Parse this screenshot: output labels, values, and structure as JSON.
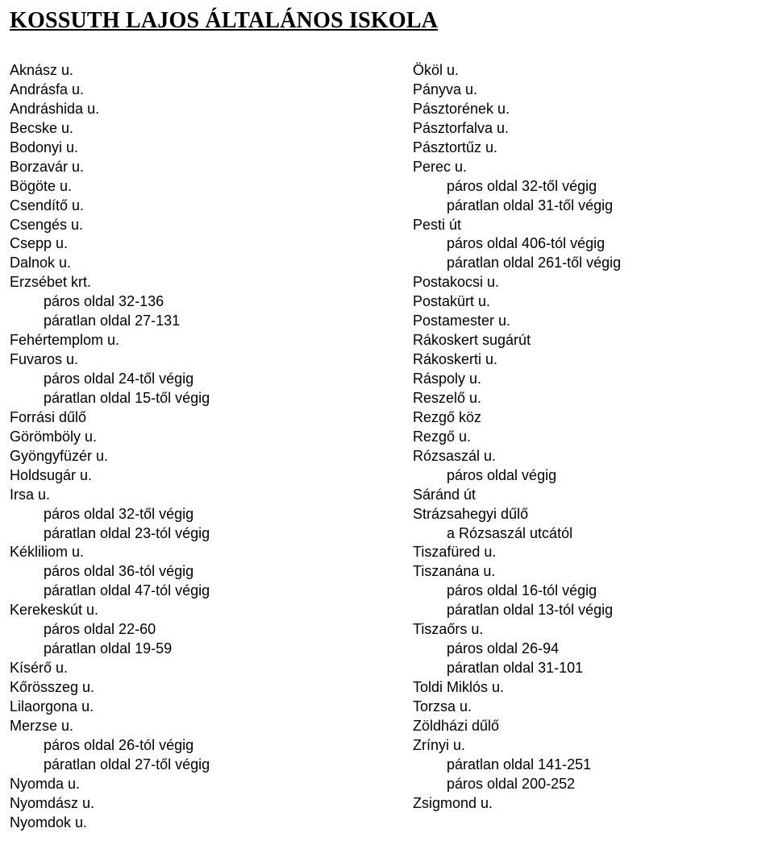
{
  "title": "KOSSUTH LAJOS ÁLTALÁNOS ISKOLA",
  "font": {
    "title_family": "Times New Roman",
    "title_size_pt": 21,
    "body_family": "Arial",
    "body_size_pt": 13.5
  },
  "colors": {
    "text": "#000000",
    "background": "#ffffff"
  },
  "columns": {
    "left": [
      {
        "text": "Aknász u.",
        "indent": 0
      },
      {
        "text": "Andrásfa u.",
        "indent": 0
      },
      {
        "text": "Andráshida u.",
        "indent": 0
      },
      {
        "text": "Becske u.",
        "indent": 0
      },
      {
        "text": "Bodonyi u.",
        "indent": 0
      },
      {
        "text": "Borzavár u.",
        "indent": 0
      },
      {
        "text": "Bögöte u.",
        "indent": 0
      },
      {
        "text": "Csendítő u.",
        "indent": 0
      },
      {
        "text": "Csengés u.",
        "indent": 0
      },
      {
        "text": "Csepp u.",
        "indent": 0
      },
      {
        "text": "Dalnok u.",
        "indent": 0
      },
      {
        "text": "Erzsébet krt.",
        "indent": 0
      },
      {
        "text": "páros oldal 32-136",
        "indent": 1
      },
      {
        "text": "páratlan oldal 27-131",
        "indent": 1
      },
      {
        "text": "Fehértemplom u.",
        "indent": 0
      },
      {
        "text": "Fuvaros u.",
        "indent": 0
      },
      {
        "text": "páros oldal 24-től végig",
        "indent": 1
      },
      {
        "text": "páratlan oldal 15-től végig",
        "indent": 1
      },
      {
        "text": "Forrási dűlő",
        "indent": 0
      },
      {
        "text": "Görömböly u.",
        "indent": 0
      },
      {
        "text": "Gyöngyfüzér u.",
        "indent": 0
      },
      {
        "text": "Holdsugár u.",
        "indent": 0
      },
      {
        "text": "Irsa u.",
        "indent": 0
      },
      {
        "text": "páros oldal 32-től végig",
        "indent": 1
      },
      {
        "text": "páratlan oldal 23-tól végig",
        "indent": 1
      },
      {
        "text": "Kékliliom u.",
        "indent": 0
      },
      {
        "text": "páros oldal 36-tól végig",
        "indent": 1
      },
      {
        "text": "páratlan oldal 47-tól végig",
        "indent": 1
      },
      {
        "text": "Kerekeskút u.",
        "indent": 0
      },
      {
        "text": "páros oldal 22-60",
        "indent": 1
      },
      {
        "text": "páratlan oldal 19-59",
        "indent": 1
      },
      {
        "text": "Kísérő u.",
        "indent": 0
      },
      {
        "text": "Kőrösszeg u.",
        "indent": 0
      },
      {
        "text": "Lilaorgona u.",
        "indent": 0
      },
      {
        "text": "Merzse u.",
        "indent": 0
      },
      {
        "text": "páros oldal 26-tól végig",
        "indent": 1
      },
      {
        "text": "páratlan oldal 27-től végig",
        "indent": 1
      },
      {
        "text": "Nyomda u.",
        "indent": 0
      },
      {
        "text": "Nyomdász u.",
        "indent": 0
      },
      {
        "text": "Nyomdok u.",
        "indent": 0
      }
    ],
    "right": [
      {
        "text": "Ököl u.",
        "indent": 0
      },
      {
        "text": "Pányva u.",
        "indent": 0
      },
      {
        "text": "Pásztorének u.",
        "indent": 0
      },
      {
        "text": "Pásztorfalva u.",
        "indent": 0
      },
      {
        "text": "Pásztortűz u.",
        "indent": 0
      },
      {
        "text": "Perec u.",
        "indent": 0
      },
      {
        "text": "páros oldal 32-től végig",
        "indent": 1
      },
      {
        "text": "páratlan oldal 31-től végig",
        "indent": 1
      },
      {
        "text": "Pesti út",
        "indent": 0
      },
      {
        "text": "páros oldal 406-tól végig",
        "indent": 1
      },
      {
        "text": "páratlan oldal 261-től végig",
        "indent": 1
      },
      {
        "text": "Postakocsi u.",
        "indent": 0
      },
      {
        "text": "Postakürt u.",
        "indent": 0
      },
      {
        "text": "Postamester u.",
        "indent": 0
      },
      {
        "text": "Rákoskert sugárút",
        "indent": 0
      },
      {
        "text": "Rákoskerti u.",
        "indent": 0
      },
      {
        "text": "Ráspoly u.",
        "indent": 0
      },
      {
        "text": "Reszelő u.",
        "indent": 0
      },
      {
        "text": "Rezgő köz",
        "indent": 0
      },
      {
        "text": "Rezgő u.",
        "indent": 0
      },
      {
        "text": "Rózsaszál u.",
        "indent": 0
      },
      {
        "text": "páros oldal végig",
        "indent": 1
      },
      {
        "text": "Sáránd út",
        "indent": 0
      },
      {
        "text": "Strázsahegyi dűlő",
        "indent": 0
      },
      {
        "text": "a Rózsaszál utcától",
        "indent": 1
      },
      {
        "text": "Tiszafüred u.",
        "indent": 0
      },
      {
        "text": "Tiszanána u.",
        "indent": 0
      },
      {
        "text": "páros oldal 16-tól végig",
        "indent": 1
      },
      {
        "text": "páratlan oldal 13-tól végig",
        "indent": 1
      },
      {
        "text": "Tiszaőrs u.",
        "indent": 0
      },
      {
        "text": "páros oldal 26-94",
        "indent": 1
      },
      {
        "text": "páratlan oldal 31-101",
        "indent": 1
      },
      {
        "text": "Toldi Miklós u.",
        "indent": 0
      },
      {
        "text": "Torzsa u.",
        "indent": 0
      },
      {
        "text": "Zöldházi dűlő",
        "indent": 0
      },
      {
        "text": "Zrínyi u.",
        "indent": 0
      },
      {
        "text": "páratlan oldal 141-251",
        "indent": 1
      },
      {
        "text": "páros oldal 200-252",
        "indent": 1
      },
      {
        "text": "Zsigmond u.",
        "indent": 0
      }
    ]
  }
}
